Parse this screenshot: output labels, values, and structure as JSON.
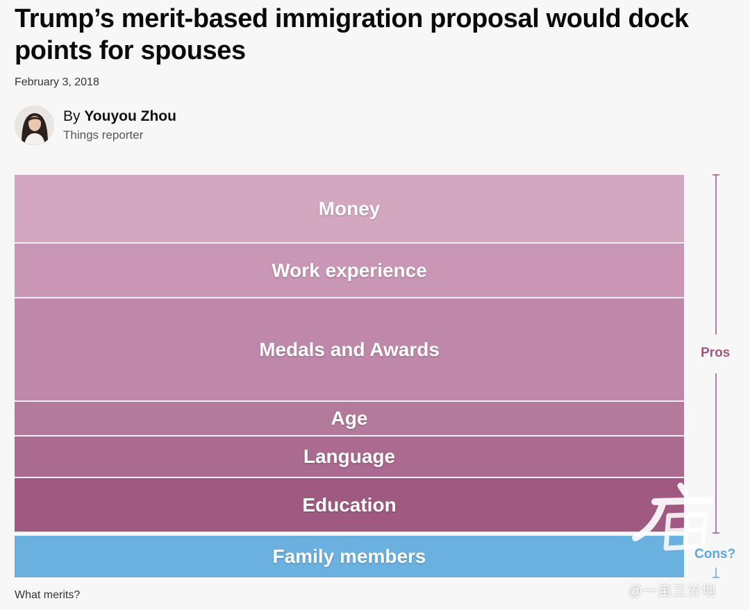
{
  "article": {
    "headline": "Trump’s merit-based immigration proposal would dock points for spouses",
    "date": "February 3, 2018",
    "author_prefix": "By",
    "author_name": "Youyou Zhou",
    "author_role": "Things reporter"
  },
  "chart": {
    "caption": "What merits?",
    "pros_label": "Pros",
    "cons_label": "Cons?",
    "pros_color": "#a0577f",
    "cons_color": "#5aa8dc",
    "bands": [
      {
        "label": "Money",
        "color": "#d3a7c0",
        "points": 5
      },
      {
        "label": "Work experience",
        "color": "#c996b5",
        "points": 4
      },
      {
        "label": "Medals and Awards",
        "color": "#bf88aa",
        "points": 7.5
      },
      {
        "label": "Age",
        "color": "#b47a9c",
        "points": 2.5
      },
      {
        "label": "Language",
        "color": "#ab6a8f",
        "points": 3
      },
      {
        "label": "Education",
        "color": "#a05a82",
        "points": 4
      },
      {
        "label": "Family members",
        "color": "#6ab1e0",
        "points": 3,
        "cons": true
      }
    ]
  },
  "watermark": {
    "text": "@一亩三分地"
  }
}
